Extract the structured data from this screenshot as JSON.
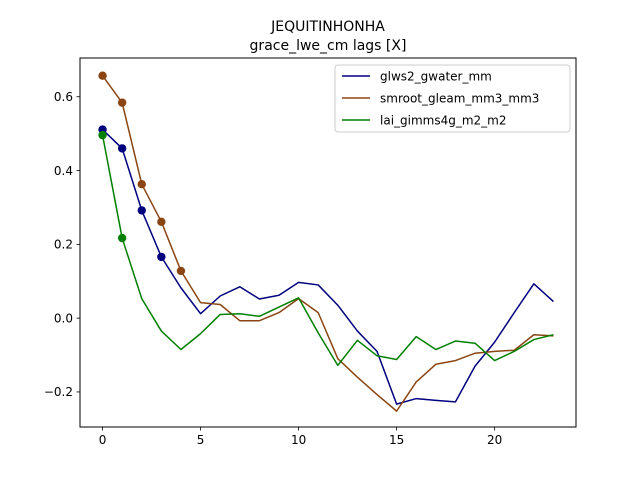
{
  "chart_data": {
    "type": "line",
    "title": "JEQUITINHONHA",
    "subtitle": "grace_lwe_cm lags [X]",
    "xlabel": "",
    "ylabel": "",
    "xlim": [
      -1.15,
      24.15
    ],
    "ylim": [
      -0.295,
      0.705
    ],
    "xticks": [
      0,
      5,
      10,
      15,
      20
    ],
    "yticks": [
      -0.2,
      0.0,
      0.2,
      0.4,
      0.6
    ],
    "ytick_labels": [
      "−0.2",
      "0.0",
      "0.2",
      "0.4",
      "0.6"
    ],
    "grid": false,
    "legend_position": "top-right",
    "x": [
      0,
      1,
      2,
      3,
      4,
      5,
      6,
      7,
      8,
      9,
      10,
      11,
      12,
      13,
      14,
      15,
      16,
      17,
      18,
      19,
      20,
      21,
      22,
      23
    ],
    "series": [
      {
        "name": "glws2_gwater_mm",
        "color": "#00007f",
        "values": [
          0.511,
          0.46,
          0.292,
          0.166,
          0.082,
          0.012,
          0.06,
          0.085,
          0.052,
          0.062,
          0.097,
          0.09,
          0.035,
          -0.035,
          -0.09,
          -0.233,
          -0.218,
          -0.223,
          -0.227,
          -0.13,
          -0.065,
          0.015,
          0.093,
          0.045
        ],
        "markers_x": [
          0,
          1,
          2,
          3
        ],
        "markers_y": [
          0.511,
          0.46,
          0.292,
          0.166
        ]
      },
      {
        "name": "smroot_gleam_mm3_mm3",
        "color": "#8b4513",
        "values": [
          0.657,
          0.584,
          0.363,
          0.261,
          0.128,
          0.042,
          0.037,
          -0.007,
          -0.007,
          0.015,
          0.053,
          0.015,
          -0.11,
          -0.16,
          -0.207,
          -0.252,
          -0.173,
          -0.125,
          -0.115,
          -0.095,
          -0.09,
          -0.087,
          -0.045,
          -0.048
        ],
        "markers_x": [
          0,
          1,
          2,
          3,
          4
        ],
        "markers_y": [
          0.657,
          0.584,
          0.363,
          0.261,
          0.128
        ]
      },
      {
        "name": "lai_gimms4g_m2_m2",
        "color": "#008000",
        "values": [
          0.496,
          0.217,
          0.053,
          -0.035,
          -0.085,
          -0.042,
          0.01,
          0.012,
          0.005,
          0.03,
          0.055,
          -0.04,
          -0.128,
          -0.06,
          -0.102,
          -0.112,
          -0.05,
          -0.085,
          -0.062,
          -0.068,
          -0.115,
          -0.09,
          -0.058,
          -0.045
        ],
        "markers_x": [
          0,
          1
        ],
        "markers_y": [
          0.496,
          0.217
        ]
      }
    ]
  }
}
